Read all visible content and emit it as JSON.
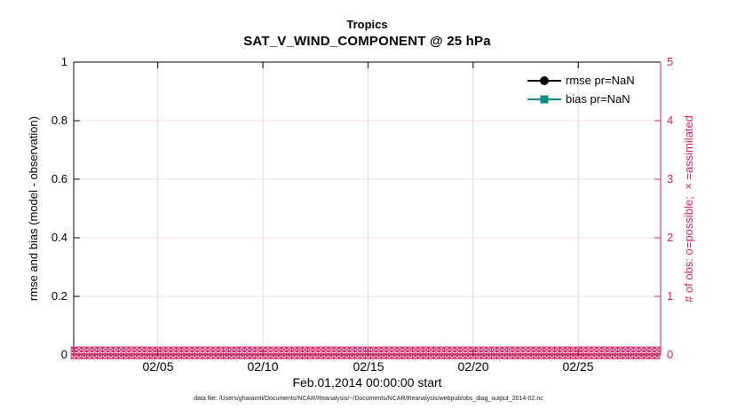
{
  "figure": {
    "title_line1": "Tropics",
    "title_line2": "SAT_V_WIND_COMPONENT @ 25 hPa",
    "footer": "data file: /Users/gharamti/Documents/NCAR/Reanalysis/~/Documents/NCAR/Reanalysis/webpub/obs_diag_output_2014-02.nc"
  },
  "axes": {
    "left": {
      "label": "rmse and bias (model - observation)",
      "ticks": [
        "0",
        "0.2",
        "0.4",
        "0.6",
        "0.8",
        "1"
      ],
      "color": "#000000"
    },
    "right": {
      "label": "# of obs: o=possible; ×=assimilated",
      "ticks": [
        "0",
        "1",
        "2",
        "3",
        "4",
        "5"
      ],
      "color": "#dc1e64"
    },
    "x": {
      "label": "Feb.01,2014 00:00:00 start",
      "ticks": [
        "02/05",
        "02/10",
        "02/15",
        "02/20",
        "02/25"
      ]
    }
  },
  "legend": {
    "items": [
      {
        "label": "rmse pr=NaN",
        "color": "#000000",
        "marker": "circle"
      },
      {
        "label": "bias pr=NaN",
        "color": "#0d8b86",
        "marker": "square"
      }
    ]
  },
  "chart_data": {
    "type": "line",
    "title": "Tropics",
    "subtitle": "SAT_V_WIND_COMPONENT @ 25 hPa",
    "xlabel": "Feb.01,2014 00:00:00 start",
    "ylabel_left": "rmse and bias (model - observation)",
    "ylabel_right": "# of obs: o=possible; ×=assimilated",
    "ylim_left": [
      0,
      1
    ],
    "ylim_right": [
      0,
      5
    ],
    "x_domain_days": [
      1,
      28.92
    ],
    "x_tick_days": [
      5,
      10,
      15,
      20,
      25
    ],
    "x_tick_labels": [
      "02/05",
      "02/10",
      "02/15",
      "02/20",
      "02/25"
    ],
    "grid": {
      "enabled": true,
      "vertical_color": "#d7d7d7",
      "horizontal_color": "#f8d7e6"
    },
    "legend_position": "top-right-inside",
    "series": [
      {
        "name": "rmse pr=NaN",
        "axis": "left",
        "color": "#000000",
        "marker": "circle",
        "values": [],
        "note": "pr=NaN, no curve drawn"
      },
      {
        "name": "bias pr=NaN",
        "axis": "left",
        "color": "#0d8b86",
        "marker": "square",
        "values": [],
        "note": "pr=NaN, no curve drawn"
      },
      {
        "name": "# of obs possible (o)",
        "axis": "right",
        "color": "#dc1e64",
        "marker": "o",
        "start_day": 1,
        "step_days": 0.25,
        "count": 112,
        "constant_value": 0
      },
      {
        "name": "# of obs assimilated (×)",
        "axis": "right",
        "color": "#dc1e64",
        "marker": "x",
        "start_day": 1,
        "step_days": 0.25,
        "count": 112,
        "constant_value": 0
      }
    ]
  }
}
